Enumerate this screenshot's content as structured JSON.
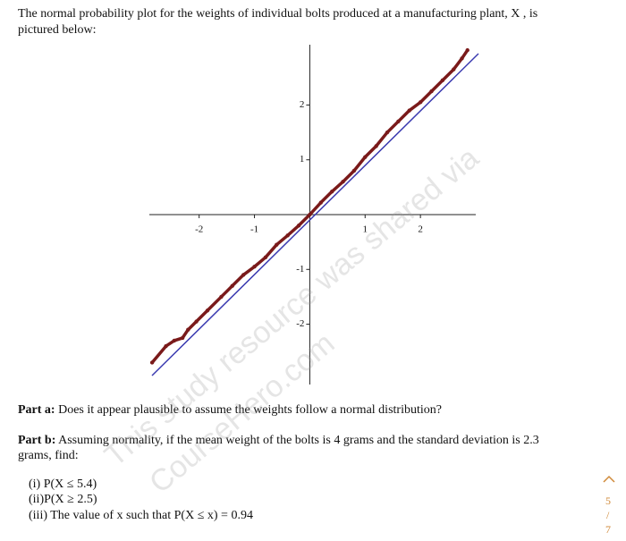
{
  "question": {
    "intro": [
      "The normal probability plot for the weights of individual bolts produced at a manufacturing plant, X , is",
      "pictured below:"
    ],
    "part_a": {
      "label": "Part a:",
      "text": "Does it appear plausible to assume the weights follow a normal distribution?"
    },
    "part_b": {
      "label": "Part b:",
      "text": [
        "Assuming normality, if the mean weight of the bolts is 4 grams and the standard deviation is 2.3",
        "grams, find:"
      ]
    },
    "items": [
      "(i) P(X ≤ 5.4)",
      "(ii)P(X ≥ 2.5)",
      "(iii) The value of x such that P(X ≤ x) = 0.94"
    ]
  },
  "plot": {
    "xlim": [
      -2.9,
      3
    ],
    "ylim": [
      -3.1,
      3.1
    ],
    "xticks": [
      -2,
      -1,
      1,
      2
    ],
    "yticks": [
      -2,
      -1,
      1,
      2
    ],
    "x": [
      -2.85,
      -2.6,
      -2.45,
      -2.3,
      -2.2,
      -2.05,
      -1.85,
      -1.6,
      -1.4,
      -1.2,
      -1.0,
      -0.8,
      -0.6,
      -0.4,
      -0.2,
      0,
      0.2,
      0.4,
      0.6,
      0.8,
      1.0,
      1.2,
      1.4,
      1.6,
      1.8,
      2.0,
      2.2,
      2.4,
      2.6,
      2.75,
      2.85
    ],
    "y": [
      -2.7,
      -2.4,
      -2.3,
      -2.25,
      -2.1,
      -1.95,
      -1.75,
      -1.5,
      -1.3,
      -1.1,
      -0.95,
      -0.78,
      -0.55,
      -0.38,
      -0.2,
      0,
      0.22,
      0.42,
      0.6,
      0.8,
      1.05,
      1.25,
      1.5,
      1.7,
      1.9,
      2.05,
      2.25,
      2.45,
      2.65,
      2.85,
      3.0
    ],
    "color": "#7a1a1a",
    "line_color": "#3a3ab0"
  },
  "watermark": [
    "This study resource was shared via",
    "CourseHero.com"
  ],
  "nav": {
    "page": "5",
    "sep": "/",
    "total": "7"
  }
}
